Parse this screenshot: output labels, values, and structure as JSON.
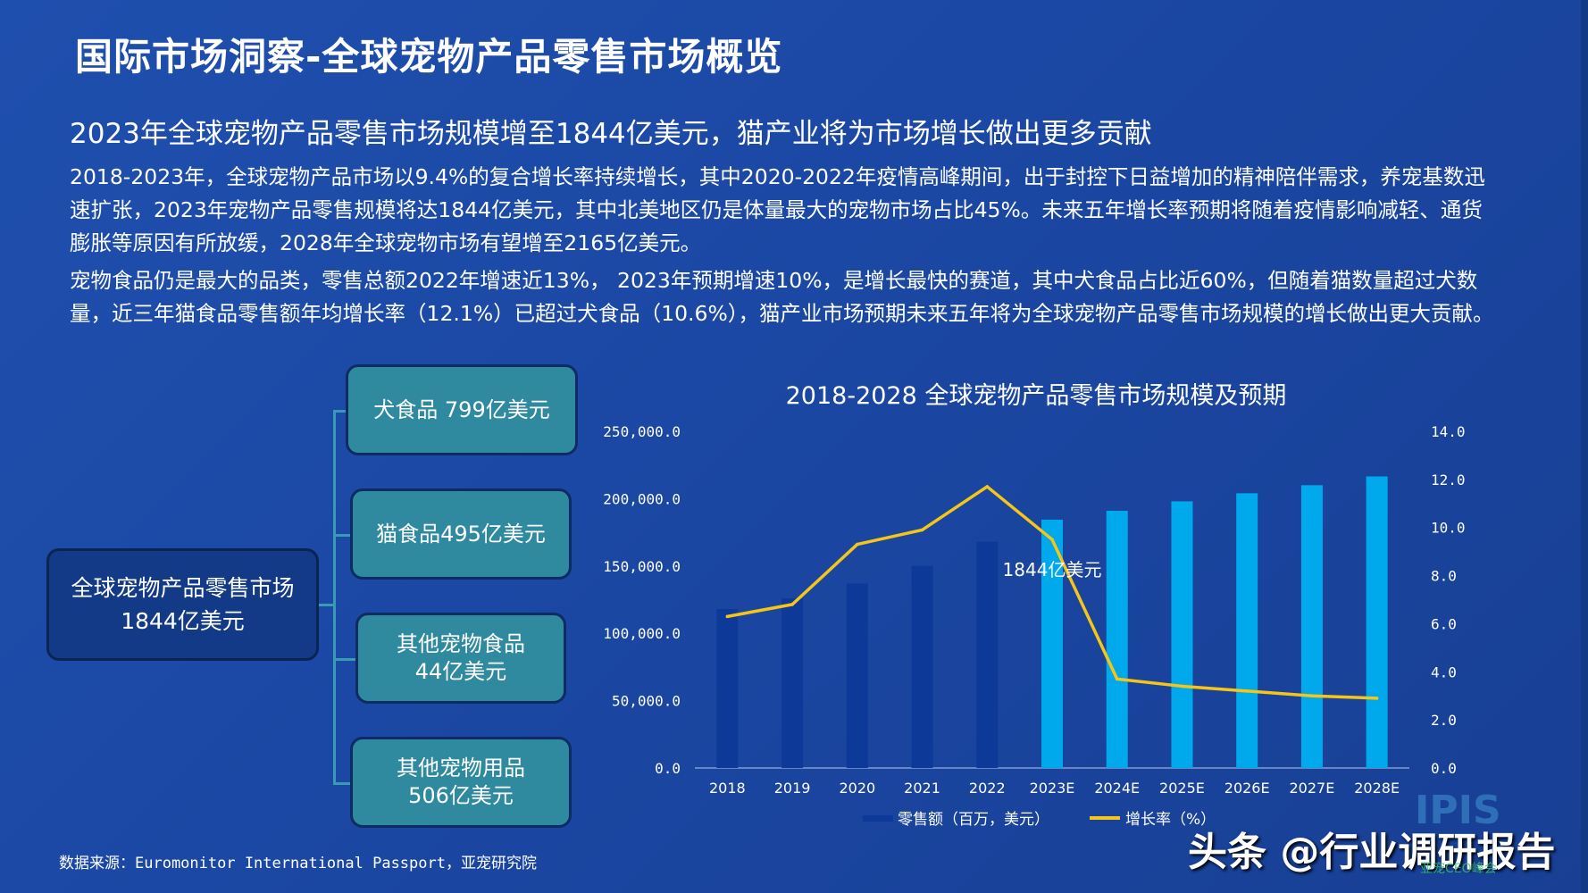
{
  "page": {
    "title": "国际市场洞察-全球宠物产品零售市场概览",
    "headline": "2023年全球宠物产品零售市场规模增至1844亿美元，猫产业将为市场增长做出更多贡献",
    "paragraph1": "2018-2023年，全球宠物产品市场以9.4%的复合增长率持续增长，其中2020-2022年疫情高峰期间，出于封控下日益增加的精神陪伴需求，养宠基数迅速扩张，2023年宠物产品零售规模将达1844亿美元，其中北美地区仍是体量最大的宠物市场占比45%。未来五年增长率预期将随着疫情影响减轻、通货膨胀等原因有所放缓，2028年全球宠物市场有望增至2165亿美元。",
    "paragraph2": "宠物食品仍是最大的品类，零售总额2022年增速近13%， 2023年预期增速10%，是增长最快的赛道，其中犬食品占比近60%，但随着猫数量超过犬数量，近三年猫食品零售额年均增长率（12.1%）已超过犬食品（10.6%），猫产业市场预期未来五年将为全球宠物产品零售市场规模的增长做出更大贡献。",
    "source": "数据来源：Euromonitor International Passport，亚宠研究院"
  },
  "tree": {
    "root": {
      "line1": "全球宠物产品零售市场",
      "line2": "1844亿美元"
    },
    "children": [
      {
        "line1": "犬食品 799亿美元",
        "line2": ""
      },
      {
        "line1": "猫食品495亿美元",
        "line2": ""
      },
      {
        "line1": "其他宠物食品",
        "line2": "44亿美元"
      },
      {
        "line1": "其他宠物用品",
        "line2": "506亿美元"
      }
    ]
  },
  "watermark": {
    "logo": "IPIS",
    "text": "头条 @行业调研报告",
    "small": "亚宠CEO峰会"
  },
  "colors": {
    "background": "#1b48a4",
    "bar_actual": "#0d3a99",
    "bar_forecast": "#00a9ec",
    "growth_line": "#f5c518",
    "node_fill": "#2f8aa0",
    "root_fill": "#123a86"
  },
  "chart_data": {
    "type": "bar",
    "title": "2018-2028 全球宠物产品零售市场规模及预期",
    "categories": [
      "2018",
      "2019",
      "2020",
      "2021",
      "2022",
      "2023E",
      "2024E",
      "2025E",
      "2026E",
      "2027E",
      "2028E"
    ],
    "series": [
      {
        "name": "零售额（百万，美元）",
        "type": "bar",
        "axis": "left",
        "values": [
          118000,
          126000,
          137000,
          150000,
          168000,
          184400,
          191000,
          198000,
          204000,
          210000,
          216500
        ]
      },
      {
        "name": "增长率（%）",
        "type": "line",
        "axis": "right",
        "values": [
          6.3,
          6.8,
          9.3,
          9.9,
          11.7,
          9.5,
          3.7,
          3.4,
          3.2,
          3.0,
          2.9
        ]
      }
    ],
    "forecast_from": "2023E",
    "y_left": {
      "min": 0,
      "max": 250000,
      "ticks": [
        "0.0",
        "50,000.0",
        "100,000.0",
        "150,000.0",
        "200,000.0",
        "250,000.0"
      ]
    },
    "y_right": {
      "min": 0,
      "max": 14,
      "ticks": [
        "0.0",
        "2.0",
        "4.0",
        "6.0",
        "8.0",
        "10.0",
        "12.0",
        "14.0"
      ]
    },
    "annotations": [
      {
        "text": "1844亿美元",
        "category": "2023E"
      }
    ],
    "grid": false,
    "legend_position": "bottom"
  }
}
